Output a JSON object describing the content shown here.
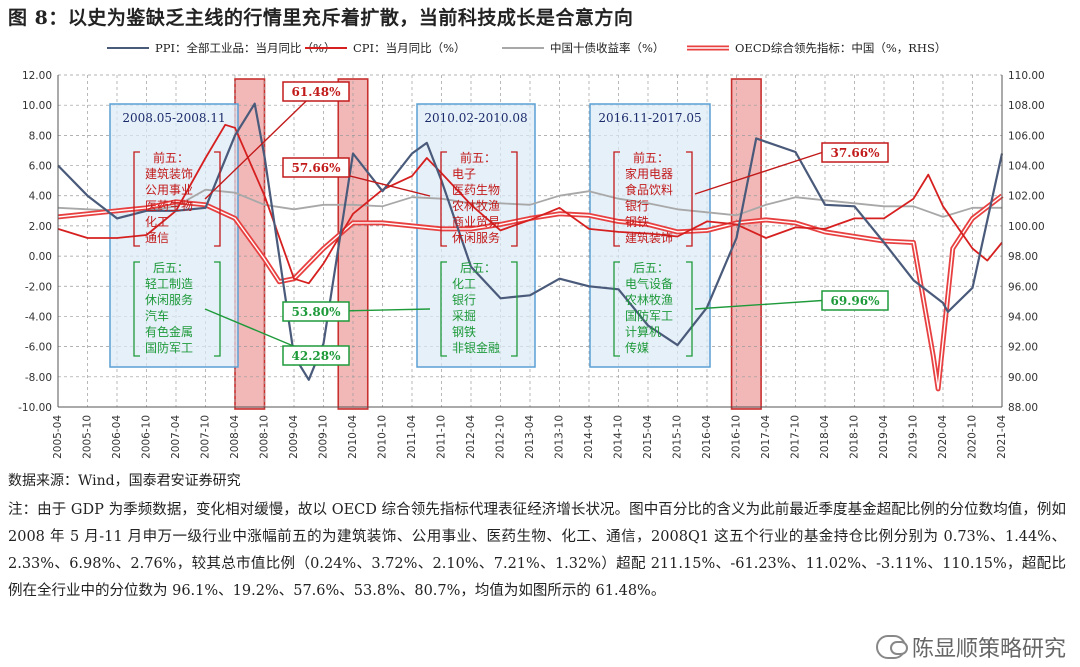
{
  "title": "图 8：以史为鉴缺乏主线的行情里充斥着扩散，当前科技成长是合意方向",
  "source": "数据来源：Wind，国泰君安证券研究",
  "note": "注：由于 GDP 为季频数据，变化相对缓慢，故以 OECD 综合领先指标代理表征经济增长状况。图中百分比的含义为此前最近季度基金超配比例的分位数均值，例如 2008 年 5 月-11 月申万一级行业中涨幅前五的为建筑装饰、公用事业、医药生物、化工、通信，2008Q1 这五个行业的基金持仓比例分别为 0.73%、1.44%、2.33%、6.98%、2.76%，较其总市值比例（0.24%、3.72%、2.10%、7.21%、1.32%）超配 211.15%、-61.23%、11.02%、-3.11%、110.15%，超配比例在全行业中的分位数为 96.1%、19.2%、57.6%、53.8%、80.7%，均值为如图所示的 61.48%。",
  "watermark": "陈显顺策略研究",
  "colors": {
    "ppi": "#4a5a7a",
    "cpi": "#d62020",
    "bond": "#a8a8a8",
    "oecd": "#e84040",
    "box_fill": "#dbeaf7",
    "box_border": "#5a9fd4",
    "shade": "#f2b8b8"
  },
  "chart_data": {
    "type": "line",
    "legend": [
      {
        "name": "PPI：全部工业品：当月同比（%）",
        "color": "#4a5a7a"
      },
      {
        "name": "CPI：当月同比（%）",
        "color": "#d62020"
      },
      {
        "name": "中国十债收益率（%）",
        "color": "#a8a8a8"
      },
      {
        "name": "OECD综合领先指标：中国（%，RHS）",
        "color": "#e84040"
      }
    ],
    "legend_position": "top",
    "y_left": {
      "min": -10,
      "max": 12,
      "step": 2,
      "ticks": [
        "12.00",
        "10.00",
        "8.00",
        "6.00",
        "4.00",
        "2.00",
        "0.00",
        "-2.00",
        "-4.00",
        "-6.00",
        "-8.00",
        "-10.00"
      ]
    },
    "y_right": {
      "min": 88,
      "max": 110,
      "step": 2,
      "ticks": [
        "110.00",
        "108.00",
        "106.00",
        "104.00",
        "102.00",
        "100.00",
        "98.00",
        "96.00",
        "94.00",
        "92.00",
        "90.00",
        "88.00"
      ]
    },
    "x_range": [
      "2005-04",
      "2021-04"
    ],
    "x_ticks": [
      "2005-04",
      "2005-10",
      "2006-04",
      "2006-10",
      "2007-04",
      "2007-10",
      "2008-04",
      "2008-10",
      "2009-04",
      "2009-10",
      "2010-04",
      "2010-10",
      "2011-04",
      "2011-10",
      "2012-04",
      "2012-10",
      "2013-04",
      "2013-10",
      "2014-04",
      "2014-10",
      "2015-04",
      "2015-10",
      "2016-04",
      "2016-10",
      "2017-04",
      "2017-10",
      "2018-04",
      "2018-10",
      "2019-04",
      "2019-10",
      "2020-04",
      "2020-10",
      "2021-04"
    ],
    "grid": true,
    "series": [
      {
        "name": "PPI：全部工业品：当月同比（%）",
        "axis": "left",
        "points": [
          [
            "2005-04",
            6.0
          ],
          [
            "2005-10",
            4.0
          ],
          [
            "2006-04",
            2.5
          ],
          [
            "2006-10",
            3.0
          ],
          [
            "2007-04",
            3.0
          ],
          [
            "2007-10",
            3.2
          ],
          [
            "2008-04",
            8.0
          ],
          [
            "2008-08",
            10.1
          ],
          [
            "2008-10",
            6.6
          ],
          [
            "2009-04",
            -6.6
          ],
          [
            "2009-07",
            -8.2
          ],
          [
            "2009-10",
            -5.8
          ],
          [
            "2010-04",
            6.8
          ],
          [
            "2010-10",
            4.3
          ],
          [
            "2011-04",
            6.8
          ],
          [
            "2011-07",
            7.5
          ],
          [
            "2011-10",
            5.0
          ],
          [
            "2012-04",
            -0.7
          ],
          [
            "2012-10",
            -2.8
          ],
          [
            "2013-04",
            -2.6
          ],
          [
            "2013-10",
            -1.5
          ],
          [
            "2014-04",
            -2.0
          ],
          [
            "2014-10",
            -2.2
          ],
          [
            "2015-04",
            -4.6
          ],
          [
            "2015-10",
            -5.9
          ],
          [
            "2016-04",
            -3.4
          ],
          [
            "2016-10",
            1.2
          ],
          [
            "2017-02",
            7.8
          ],
          [
            "2017-10",
            6.9
          ],
          [
            "2018-04",
            3.4
          ],
          [
            "2018-10",
            3.3
          ],
          [
            "2019-04",
            0.9
          ],
          [
            "2019-10",
            -1.6
          ],
          [
            "2020-04",
            -3.1
          ],
          [
            "2020-05",
            -3.7
          ],
          [
            "2020-10",
            -2.1
          ],
          [
            "2021-04",
            6.8
          ]
        ]
      },
      {
        "name": "CPI：当月同比（%）",
        "axis": "left",
        "points": [
          [
            "2005-04",
            1.8
          ],
          [
            "2005-10",
            1.2
          ],
          [
            "2006-04",
            1.2
          ],
          [
            "2006-10",
            1.4
          ],
          [
            "2007-04",
            3.0
          ],
          [
            "2007-10",
            6.5
          ],
          [
            "2008-02",
            8.7
          ],
          [
            "2008-04",
            8.5
          ],
          [
            "2008-10",
            4.0
          ],
          [
            "2009-04",
            -1.5
          ],
          [
            "2009-07",
            -1.8
          ],
          [
            "2009-10",
            -0.5
          ],
          [
            "2010-04",
            2.8
          ],
          [
            "2010-10",
            4.4
          ],
          [
            "2011-04",
            5.3
          ],
          [
            "2011-07",
            6.5
          ],
          [
            "2011-10",
            5.5
          ],
          [
            "2012-04",
            3.4
          ],
          [
            "2012-10",
            1.7
          ],
          [
            "2013-04",
            2.4
          ],
          [
            "2013-10",
            3.2
          ],
          [
            "2014-04",
            1.8
          ],
          [
            "2014-10",
            1.6
          ],
          [
            "2015-04",
            1.5
          ],
          [
            "2015-10",
            1.3
          ],
          [
            "2016-04",
            2.3
          ],
          [
            "2016-10",
            2.1
          ],
          [
            "2017-04",
            1.2
          ],
          [
            "2017-10",
            1.9
          ],
          [
            "2018-04",
            1.8
          ],
          [
            "2018-10",
            2.5
          ],
          [
            "2019-04",
            2.5
          ],
          [
            "2019-10",
            3.8
          ],
          [
            "2020-01",
            5.4
          ],
          [
            "2020-04",
            3.3
          ],
          [
            "2020-10",
            0.5
          ],
          [
            "2021-01",
            -0.3
          ],
          [
            "2021-04",
            0.9
          ]
        ]
      },
      {
        "name": "中国十债收益率（%）",
        "axis": "left",
        "points": [
          [
            "2005-04",
            3.2
          ],
          [
            "2005-10",
            3.1
          ],
          [
            "2006-04",
            3.0
          ],
          [
            "2006-10",
            3.0
          ],
          [
            "2007-04",
            3.3
          ],
          [
            "2007-10",
            4.4
          ],
          [
            "2008-04",
            4.2
          ],
          [
            "2008-10",
            3.4
          ],
          [
            "2009-04",
            3.1
          ],
          [
            "2009-10",
            3.4
          ],
          [
            "2010-04",
            3.4
          ],
          [
            "2010-10",
            3.3
          ],
          [
            "2011-04",
            3.9
          ],
          [
            "2011-10",
            3.8
          ],
          [
            "2012-04",
            3.5
          ],
          [
            "2012-10",
            3.5
          ],
          [
            "2013-04",
            3.4
          ],
          [
            "2013-10",
            4.0
          ],
          [
            "2014-04",
            4.3
          ],
          [
            "2014-10",
            3.8
          ],
          [
            "2015-04",
            3.5
          ],
          [
            "2015-10",
            3.1
          ],
          [
            "2016-04",
            2.9
          ],
          [
            "2016-10",
            2.7
          ],
          [
            "2017-04",
            3.4
          ],
          [
            "2017-10",
            3.9
          ],
          [
            "2018-04",
            3.7
          ],
          [
            "2018-10",
            3.5
          ],
          [
            "2019-04",
            3.3
          ],
          [
            "2019-10",
            3.3
          ],
          [
            "2020-04",
            2.6
          ],
          [
            "2020-10",
            3.2
          ],
          [
            "2021-04",
            3.2
          ]
        ]
      },
      {
        "name": "OECD综合领先指标：中国（%，RHS）",
        "axis": "right",
        "points": [
          [
            "2005-04",
            100.6
          ],
          [
            "2005-10",
            100.8
          ],
          [
            "2006-04",
            101.0
          ],
          [
            "2006-10",
            101.2
          ],
          [
            "2007-04",
            101.6
          ],
          [
            "2007-10",
            101.4
          ],
          [
            "2008-04",
            100.5
          ],
          [
            "2008-10",
            97.8
          ],
          [
            "2009-01",
            96.3
          ],
          [
            "2009-04",
            96.5
          ],
          [
            "2009-10",
            98.5
          ],
          [
            "2010-04",
            100.2
          ],
          [
            "2010-10",
            100.2
          ],
          [
            "2011-04",
            100.0
          ],
          [
            "2011-10",
            99.8
          ],
          [
            "2012-04",
            99.8
          ],
          [
            "2012-10",
            100.1
          ],
          [
            "2013-04",
            100.5
          ],
          [
            "2013-10",
            100.8
          ],
          [
            "2014-04",
            100.7
          ],
          [
            "2014-10",
            100.3
          ],
          [
            "2015-04",
            100.1
          ],
          [
            "2015-10",
            99.6
          ],
          [
            "2016-04",
            99.7
          ],
          [
            "2016-10",
            100.2
          ],
          [
            "2017-04",
            100.4
          ],
          [
            "2017-10",
            100.2
          ],
          [
            "2018-04",
            99.6
          ],
          [
            "2018-10",
            99.3
          ],
          [
            "2019-04",
            99.0
          ],
          [
            "2019-10",
            98.9
          ],
          [
            "2020-02",
            91.4
          ],
          [
            "2020-03",
            89.2
          ],
          [
            "2020-06",
            98.5
          ],
          [
            "2020-10",
            100.5
          ],
          [
            "2021-04",
            102.0
          ]
        ]
      }
    ],
    "shaded_periods": [
      [
        "2008-04",
        "2008-10"
      ],
      [
        "2010-01",
        "2010-07"
      ],
      [
        "2016-09",
        "2017-03"
      ]
    ],
    "boxes": [
      {
        "title": "2008.05-2008.11",
        "top": "前五：",
        "top_items": [
          "建筑装饰",
          "公用事业",
          "医药生物",
          "化工",
          "通信"
        ],
        "bottom": "后五：",
        "bottom_items": [
          "轻工制造",
          "休闲服务",
          "汽车",
          "有色金属",
          "国防军工"
        ],
        "top_pct": "61.48%",
        "bottom_pct": "42.28%"
      },
      {
        "title": "2010.02-2010.08",
        "top": "前五：",
        "top_items": [
          "电子",
          "医药生物",
          "农林牧渔",
          "商业贸易",
          "休闲服务"
        ],
        "bottom": "后五：",
        "bottom_items": [
          "化工",
          "银行",
          "采掘",
          "钢铁",
          "非银金融"
        ],
        "top_pct": "57.66%",
        "bottom_pct": "53.80%"
      },
      {
        "title": "2016.11-2017.05",
        "top": "前五：",
        "top_items": [
          "家用电器",
          "食品饮料",
          "银行",
          "钢铁",
          "建筑装饰"
        ],
        "bottom": "后五：",
        "bottom_items": [
          "电气设备",
          "农林牧渔",
          "国防军工",
          "计算机",
          "传媒"
        ],
        "top_pct": "37.66%",
        "bottom_pct": "69.96%"
      }
    ]
  }
}
